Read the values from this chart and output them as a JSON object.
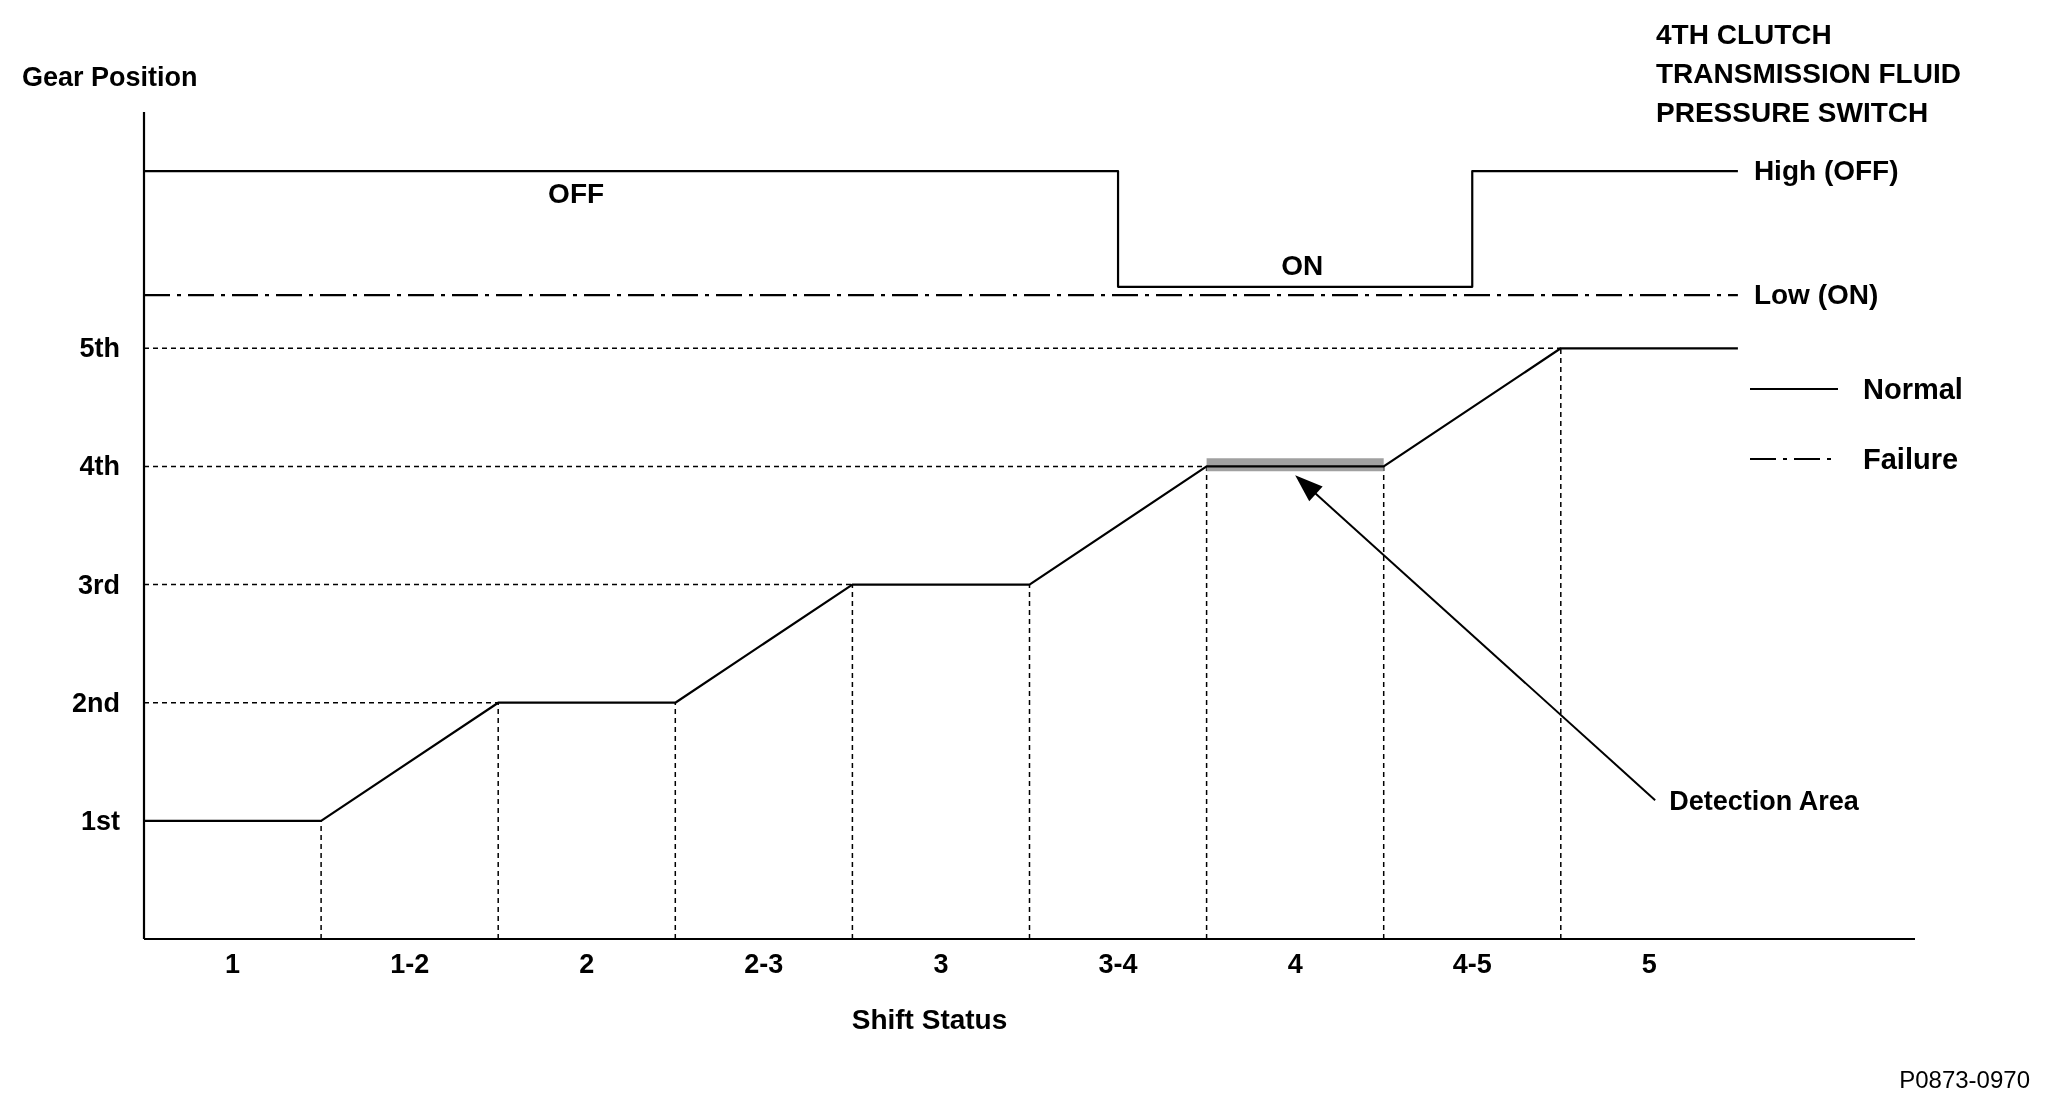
{
  "chart_data": {
    "type": "line",
    "title": "4TH CLUTCH\nTRANSMISSION FLUID\nPRESSURE SWITCH",
    "xlabel": "Shift Status",
    "ylabel": "Gear Position",
    "xlim": [
      0.75,
      5.75
    ],
    "ylim": [
      0,
      7
    ],
    "xticks": [
      1,
      {
        "value": 1.5,
        "label": "1-2"
      },
      2,
      {
        "value": 2.5,
        "label": "2-3"
      },
      3,
      {
        "value": 3.5,
        "label": "3-4"
      },
      4,
      {
        "value": 4.5,
        "label": "4-5"
      },
      5
    ],
    "yticks": [
      {
        "value": 1,
        "label": "1st"
      },
      {
        "value": 2,
        "label": "2nd"
      },
      {
        "value": 3,
        "label": "3rd"
      },
      {
        "value": 4,
        "label": "4th"
      },
      {
        "value": 5,
        "label": "5th"
      }
    ],
    "series": [
      {
        "color": "#000000",
        "x": [
          0.75,
          1.25,
          1.75,
          2.25,
          2.75,
          3.25,
          3.75,
          4.25,
          4.75,
          5.25
        ],
        "values": [
          1,
          1,
          2,
          2,
          3,
          3,
          4,
          4,
          5,
          5
        ],
        "lower": [
          null,
          null,
          null,
          null,
          null,
          null,
          3.96,
          3.96,
          null,
          null
        ],
        "upper": [
          null,
          null,
          null,
          null,
          null,
          null,
          4.07,
          4.07,
          null,
          null
        ],
        "line_style": "solid"
      },
      {
        "name": "Normal",
        "color": "#000000",
        "x": [
          0.75,
          3.5,
          3.5,
          4.5,
          4.5,
          5.25
        ],
        "values": [
          6.5,
          6.5,
          5.52,
          5.52,
          6.5,
          6.5
        ],
        "line_style": "solid"
      },
      {
        "name": "Failure",
        "color": "#000000",
        "x": [
          0.75,
          5.25
        ],
        "values": [
          5.45,
          5.45
        ],
        "line_style": "dashed"
      }
    ],
    "ref_lines": [
      {
        "axis": "x",
        "value": 1.25
      },
      {
        "axis": "x",
        "value": 1.75
      },
      {
        "axis": "x",
        "value": 2.25
      },
      {
        "axis": "x",
        "value": 2.75
      },
      {
        "axis": "x",
        "value": 3.25
      },
      {
        "axis": "x",
        "value": 3.75
      },
      {
        "axis": "x",
        "value": 4.25
      },
      {
        "axis": "x",
        "value": 4.75
      },
      {
        "axis": "y",
        "value": 2
      },
      {
        "axis": "y",
        "value": 3
      },
      {
        "axis": "y",
        "value": 4
      },
      {
        "axis": "y",
        "value": 5
      }
    ],
    "annotations": [
      {
        "text": "OFF",
        "x": 1.97,
        "y": 6.5
      },
      {
        "text": "ON",
        "x": 4.02,
        "y": 5.52
      },
      {
        "text": "High (OFF)",
        "x": 5.25,
        "y": 6.5
      },
      {
        "text": "Low (ON)",
        "x": 5.25,
        "y": 5.45
      },
      "Detection Area",
      "P0873-0970"
    ],
    "legend": "right",
    "marker": "none",
    "grid": false
  }
}
